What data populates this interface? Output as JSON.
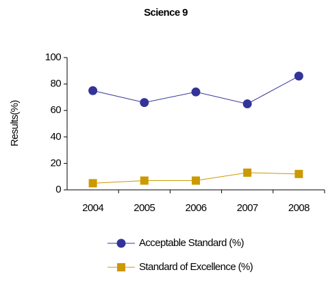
{
  "chart_data": {
    "type": "line",
    "title": "Science 9",
    "y_label": "Results(%)",
    "categories": [
      "2004",
      "2005",
      "2006",
      "2007",
      "2008"
    ],
    "series": [
      {
        "name": "Acceptable Standard (%)",
        "color": "#333399",
        "marker": "circle",
        "values": [
          75,
          66,
          74,
          65,
          86
        ]
      },
      {
        "name": "Standard of Excellence (%)",
        "color": "#cc9900",
        "marker": "square",
        "values": [
          5,
          7,
          7,
          13,
          12
        ]
      }
    ],
    "ylim": [
      0,
      100
    ],
    "yticks": [
      0,
      20,
      40,
      60,
      80,
      100
    ],
    "grid": false,
    "legend": "bottom"
  }
}
